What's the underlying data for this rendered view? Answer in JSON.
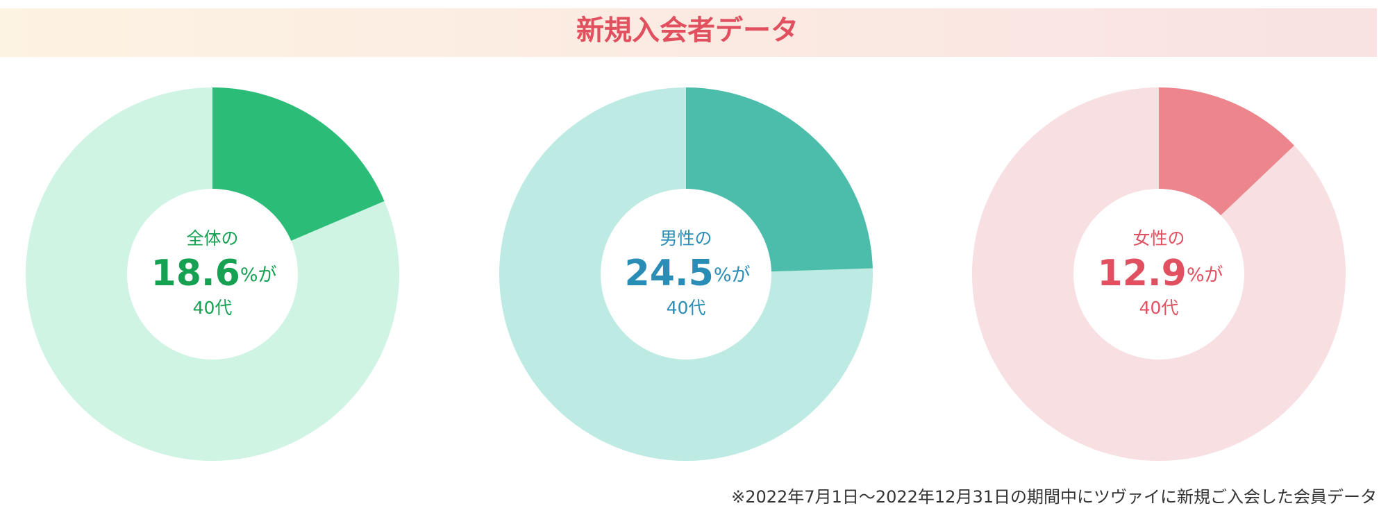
{
  "title": "新規入会者データ",
  "note": "※2022年7月1日〜2022年12月31日の期間中にツヴァイに新規ご入会した会員データ",
  "chart_data": [
    {
      "type": "donut",
      "title": "全体の",
      "values": [
        18.6
      ],
      "unit": "%が",
      "subtitle": "40代",
      "colors": [
        "#2bbd78",
        "#d0f4e3"
      ],
      "text_color": "#16a052"
    },
    {
      "type": "donut",
      "title": "男性の",
      "values": [
        24.5
      ],
      "unit": "%が",
      "subtitle": "40代",
      "colors": [
        "#4bbdaa",
        "#bdebe3"
      ],
      "text_color": "#2a8db5"
    },
    {
      "type": "donut",
      "title": "女性の",
      "values": [
        12.9
      ],
      "unit": "%が",
      "subtitle": "40代",
      "colors": [
        "#ec858c",
        "#f8dfe1"
      ],
      "text_color": "#e05060"
    }
  ]
}
